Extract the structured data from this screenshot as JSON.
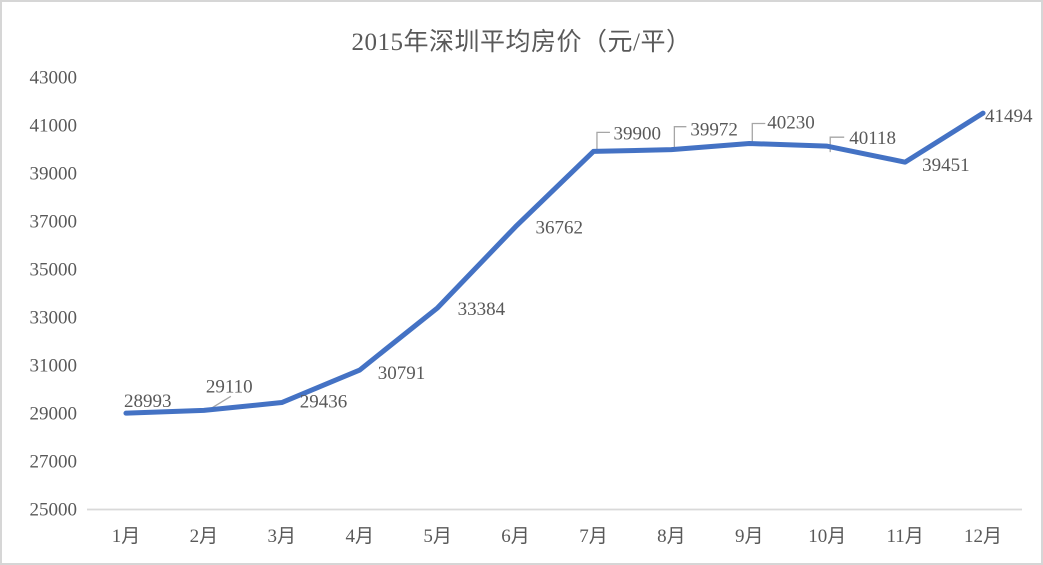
{
  "window": {
    "background_color": "#ffffff",
    "border_color": "#d6d6d6"
  },
  "chart_data": {
    "type": "line",
    "title": "2015年深圳平均房价（元/平）",
    "categories": [
      "1月",
      "2月",
      "3月",
      "4月",
      "5月",
      "6月",
      "7月",
      "8月",
      "9月",
      "10月",
      "11月",
      "12月"
    ],
    "values": [
      28993,
      29110,
      29436,
      30791,
      33384,
      36762,
      39900,
      39972,
      40230,
      40118,
      39451,
      41494
    ],
    "data_label_texts": [
      "28993",
      "29110",
      "29436",
      "30791",
      "33384",
      "36762",
      "39900",
      "39972",
      "40230",
      "40118",
      "39451",
      "41494"
    ],
    "ylim": [
      25000,
      43000
    ],
    "ytick_step": 2000,
    "ytick_labels": [
      "25000",
      "27000",
      "29000",
      "31000",
      "33000",
      "35000",
      "37000",
      "39000",
      "41000",
      "43000"
    ],
    "xlabel": "",
    "ylabel": "",
    "grid": false,
    "legend_position": "none",
    "data_labels_shown": true,
    "colors": {
      "line": "#4472C4",
      "axis_line": "#D9D9D9",
      "tick_text": "#595959",
      "data_label_text": "#595959",
      "title_text": "#595959",
      "leader_line": "#A6A6A6"
    }
  }
}
